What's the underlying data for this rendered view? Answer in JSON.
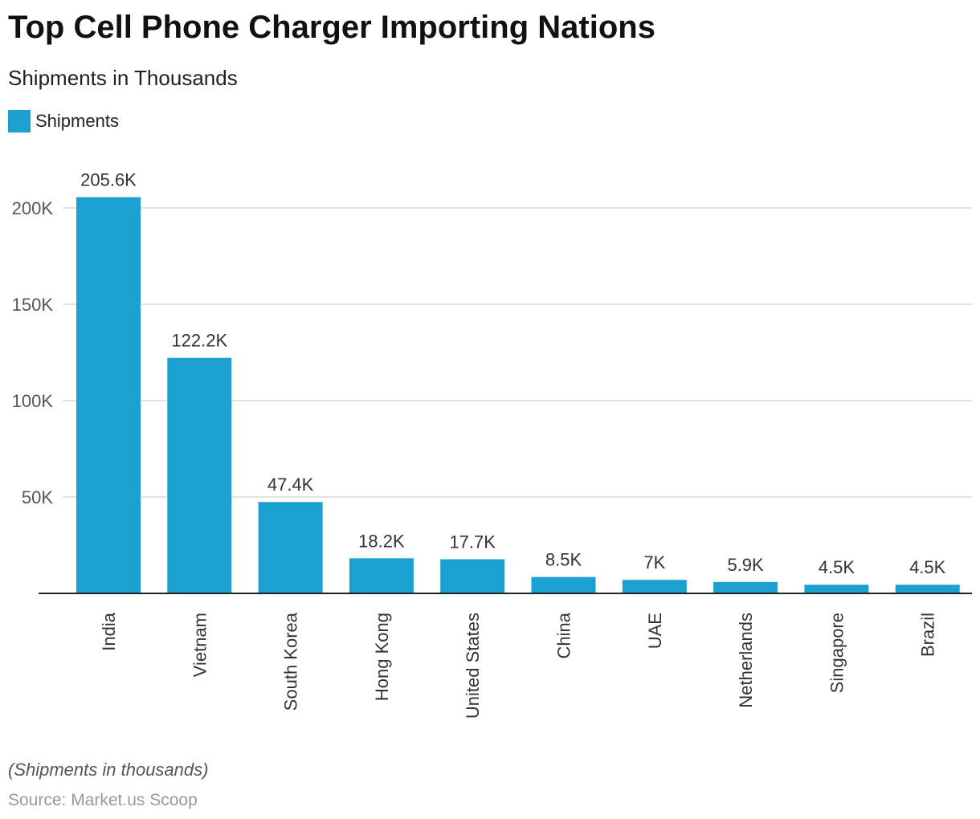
{
  "title": "Top Cell Phone Charger Importing Nations",
  "subtitle": "Shipments in Thousands",
  "note": "(Shipments in thousands)",
  "source": "Source: Market.us Scoop",
  "chart_data": {
    "type": "bar",
    "categories": [
      "India",
      "Vietnam",
      "South Korea",
      "Hong Kong",
      "United States",
      "China",
      "UAE",
      "Netherlands",
      "Singapore",
      "Brazil"
    ],
    "series": [
      {
        "name": "Shipments",
        "values": [
          205.6,
          122.2,
          47.4,
          18.2,
          17.7,
          8.5,
          7,
          5.9,
          4.5,
          4.5
        ]
      }
    ],
    "data_labels": [
      "205.6K",
      "122.2K",
      "47.4K",
      "18.2K",
      "17.7K",
      "8.5K",
      "7K",
      "5.9K",
      "4.5K",
      "4.5K"
    ],
    "yticks": [
      50,
      100,
      150,
      200
    ],
    "ytick_labels": [
      "50K",
      "100K",
      "150K",
      "200K"
    ],
    "ylim": [
      0,
      210
    ],
    "grid": true,
    "legend": "top-left",
    "color": "#1aa1cf"
  }
}
